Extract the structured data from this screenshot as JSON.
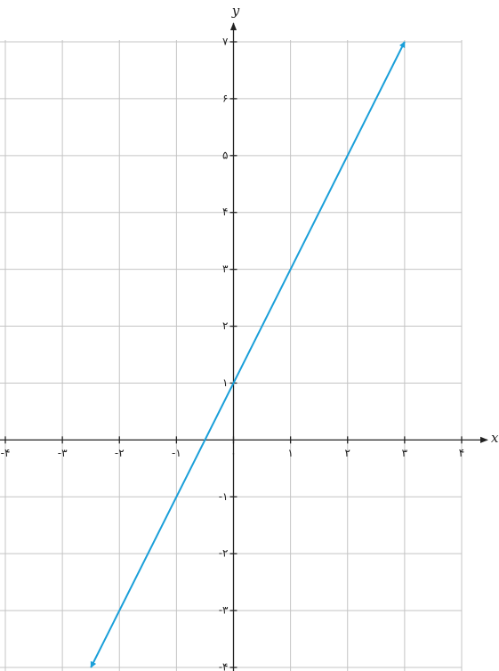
{
  "chart_data": {
    "type": "line",
    "x_label": "x",
    "y_label": "y",
    "x": [
      -2.5,
      3
    ],
    "values": [
      -4,
      7
    ],
    "color": "#1a9fd9",
    "xlim": [
      -4,
      4
    ],
    "ylim": [
      -4,
      7
    ],
    "xticks": [
      {
        "value": -4,
        "label": "-۴"
      },
      {
        "value": -3,
        "label": "-۳"
      },
      {
        "value": -2,
        "label": "-۲"
      },
      {
        "value": -1,
        "label": "-۱"
      },
      {
        "value": 0,
        "label": "۰"
      },
      {
        "value": 1,
        "label": "۱"
      },
      {
        "value": 2,
        "label": "۲"
      },
      {
        "value": 3,
        "label": "۳"
      },
      {
        "value": 4,
        "label": "۴"
      }
    ],
    "yticks": [
      {
        "value": -4,
        "label": "-۴"
      },
      {
        "value": -3,
        "label": "-۳"
      },
      {
        "value": -2,
        "label": "-۲"
      },
      {
        "value": -1,
        "label": "-۱"
      },
      {
        "value": 1,
        "label": "۱"
      },
      {
        "value": 2,
        "label": "۲"
      },
      {
        "value": 3,
        "label": "۳"
      },
      {
        "value": 4,
        "label": "۴"
      },
      {
        "value": 5,
        "label": "۵"
      },
      {
        "value": 6,
        "label": "۶"
      },
      {
        "value": 7,
        "label": "۷"
      }
    ],
    "grid": true
  }
}
